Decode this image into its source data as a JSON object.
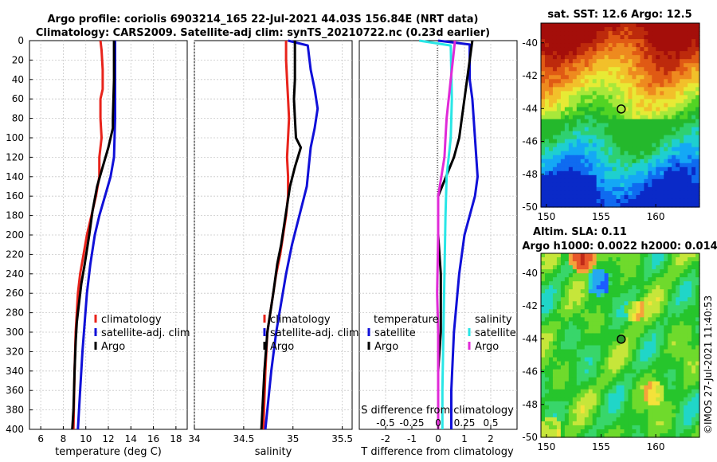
{
  "header": {
    "line1": "Argo profile: coriolis 6903214_165 22-Jul-2021 44.03S 156.84E (NRT data)",
    "line2": "Climatology: CARS2009. Satellite-adj clim: synTS_20210722.nc (0.23d earlier)"
  },
  "colors": {
    "red": "#e8231b",
    "blue": "#1010d8",
    "black": "#000000",
    "cyan": "#29e6e6",
    "magenta": "#e02ad8"
  },
  "chart_data": [
    {
      "type": "line",
      "name": "temperature",
      "xlabel": "temperature (deg C)",
      "ylabel": "",
      "xlim": [
        5,
        19
      ],
      "ylim": [
        400,
        0
      ],
      "xticks": [
        "6",
        "8",
        "10",
        "12",
        "14",
        "16",
        "18"
      ],
      "yticks": [
        "0",
        "20",
        "40",
        "60",
        "80",
        "100",
        "120",
        "140",
        "160",
        "180",
        "200",
        "220",
        "240",
        "260",
        "280",
        "300",
        "320",
        "340",
        "360",
        "380",
        "400"
      ],
      "legend": [
        "climatology",
        "satellite-adj. clim",
        "Argo"
      ],
      "series": [
        {
          "name": "climatology",
          "color": "red",
          "points": [
            [
              11.3,
              0
            ],
            [
              11.4,
              10
            ],
            [
              11.5,
              30
            ],
            [
              11.5,
              50
            ],
            [
              11.3,
              60
            ],
            [
              11.3,
              80
            ],
            [
              11.4,
              100
            ],
            [
              11.2,
              120
            ],
            [
              11.2,
              140
            ],
            [
              10.9,
              160
            ],
            [
              10.5,
              180
            ],
            [
              10.1,
              200
            ],
            [
              9.8,
              220
            ],
            [
              9.5,
              240
            ],
            [
              9.3,
              260
            ],
            [
              9.2,
              280
            ],
            [
              9.1,
              300
            ],
            [
              9.0,
              340
            ],
            [
              8.9,
              400
            ]
          ]
        },
        {
          "name": "satellite-adj. clim",
          "color": "blue",
          "points": [
            [
              12.6,
              0
            ],
            [
              12.6,
              20
            ],
            [
              12.6,
              80
            ],
            [
              12.5,
              120
            ],
            [
              12.2,
              140
            ],
            [
              11.7,
              160
            ],
            [
              11.2,
              180
            ],
            [
              10.8,
              200
            ],
            [
              10.4,
              230
            ],
            [
              10.1,
              260
            ],
            [
              9.9,
              290
            ],
            [
              9.7,
              320
            ],
            [
              9.5,
              360
            ],
            [
              9.3,
              400
            ]
          ]
        },
        {
          "name": "Argo",
          "color": "black",
          "points": [
            [
              12.5,
              0
            ],
            [
              12.5,
              20
            ],
            [
              12.5,
              40
            ],
            [
              12.4,
              80
            ],
            [
              12.4,
              90
            ],
            [
              12.0,
              110
            ],
            [
              11.5,
              130
            ],
            [
              11.0,
              150
            ],
            [
              10.6,
              175
            ],
            [
              10.3,
              200
            ],
            [
              9.9,
              230
            ],
            [
              9.6,
              250
            ],
            [
              9.4,
              270
            ],
            [
              9.2,
              290
            ],
            [
              9.1,
              310
            ],
            [
              9.0,
              340
            ],
            [
              8.9,
              380
            ],
            [
              8.8,
              400
            ]
          ]
        }
      ]
    },
    {
      "type": "line",
      "name": "salinity",
      "xlabel": "salinity",
      "xlim": [
        34.0,
        35.6
      ],
      "ylim": [
        400,
        0
      ],
      "xticks": [
        "34",
        "34.5",
        "35",
        "35.5"
      ],
      "legend": [
        "climatology",
        "satellite-adj. clim",
        "Argo"
      ],
      "series": [
        {
          "name": "climatology",
          "color": "red",
          "points": [
            [
              34.93,
              0
            ],
            [
              34.93,
              20
            ],
            [
              34.94,
              40
            ],
            [
              34.95,
              60
            ],
            [
              34.96,
              80
            ],
            [
              34.95,
              100
            ],
            [
              34.94,
              120
            ],
            [
              34.95,
              140
            ],
            [
              34.95,
              160
            ],
            [
              34.93,
              180
            ],
            [
              34.9,
              200
            ],
            [
              34.87,
              220
            ],
            [
              34.83,
              240
            ],
            [
              34.8,
              260
            ],
            [
              34.77,
              280
            ],
            [
              34.74,
              300
            ],
            [
              34.72,
              340
            ],
            [
              34.7,
              400
            ]
          ]
        },
        {
          "name": "satellite-adj. clim",
          "color": "blue",
          "points": [
            [
              34.95,
              0
            ],
            [
              35.15,
              5
            ],
            [
              35.18,
              30
            ],
            [
              35.22,
              50
            ],
            [
              35.25,
              70
            ],
            [
              35.22,
              90
            ],
            [
              35.18,
              110
            ],
            [
              35.16,
              130
            ],
            [
              35.14,
              150
            ],
            [
              35.09,
              170
            ],
            [
              35.04,
              190
            ],
            [
              34.99,
              210
            ],
            [
              34.93,
              240
            ],
            [
              34.88,
              270
            ],
            [
              34.83,
              300
            ],
            [
              34.78,
              340
            ],
            [
              34.72,
              400
            ]
          ]
        },
        {
          "name": "Argo",
          "color": "black",
          "points": [
            [
              35.02,
              0
            ],
            [
              35.02,
              20
            ],
            [
              35.02,
              40
            ],
            [
              35.01,
              60
            ],
            [
              35.02,
              80
            ],
            [
              35.03,
              100
            ],
            [
              35.08,
              110
            ],
            [
              35.05,
              120
            ],
            [
              35.02,
              130
            ],
            [
              34.97,
              150
            ],
            [
              34.94,
              170
            ],
            [
              34.91,
              190
            ],
            [
              34.88,
              210
            ],
            [
              34.84,
              230
            ],
            [
              34.8,
              260
            ],
            [
              34.77,
              280
            ],
            [
              34.74,
              300
            ],
            [
              34.71,
              340
            ],
            [
              34.68,
              400
            ]
          ]
        }
      ]
    },
    {
      "type": "line",
      "name": "difference",
      "xlabel": "T difference from climatology",
      "x2label": "S difference from climatology",
      "xlim": [
        -3,
        3
      ],
      "ylim": [
        400,
        0
      ],
      "xticks": [
        "-2",
        "-1",
        "0",
        "1",
        "2"
      ],
      "x2ticks": [
        "-0.5",
        "-0.25",
        "0",
        "0.25",
        "0.5"
      ],
      "legend_left_title": "temperature",
      "legend_right_title": "salinity",
      "legend_left": [
        "satellite",
        "Argo"
      ],
      "legend_right": [
        "satellite",
        "Argo"
      ],
      "series": [
        {
          "name": "T satellite",
          "color": "blue",
          "points": [
            [
              0.0,
              0
            ],
            [
              1.2,
              4
            ],
            [
              1.2,
              40
            ],
            [
              1.3,
              60
            ],
            [
              1.4,
              100
            ],
            [
              1.5,
              140
            ],
            [
              1.4,
              160
            ],
            [
              1.2,
              180
            ],
            [
              1.0,
              200
            ],
            [
              0.8,
              240
            ],
            [
              0.6,
              300
            ],
            [
              0.5,
              360
            ],
            [
              0.5,
              400
            ]
          ]
        },
        {
          "name": "T Argo",
          "color": "black",
          "points": [
            [
              1.3,
              0
            ],
            [
              1.2,
              20
            ],
            [
              1.1,
              40
            ],
            [
              1.0,
              60
            ],
            [
              0.9,
              80
            ],
            [
              0.8,
              100
            ],
            [
              0.6,
              120
            ],
            [
              0.3,
              140
            ],
            [
              0.0,
              160
            ],
            [
              0.0,
              200
            ],
            [
              0.1,
              240
            ],
            [
              0.1,
              300
            ],
            [
              0.0,
              340
            ],
            [
              0.0,
              400
            ]
          ]
        },
        {
          "name": "S satellite",
          "color": "cyan",
          "points": [
            [
              -0.18,
              0
            ],
            [
              0.12,
              5
            ],
            [
              0.13,
              60
            ],
            [
              0.12,
              100
            ],
            [
              0.1,
              120
            ],
            [
              0.08,
              140
            ],
            [
              0.07,
              180
            ],
            [
              0.06,
              240
            ],
            [
              0.05,
              300
            ],
            [
              0.04,
              360
            ],
            [
              0.04,
              400
            ]
          ]
        },
        {
          "name": "S Argo",
          "color": "magenta",
          "points": [
            [
              0.16,
              0
            ],
            [
              0.14,
              20
            ],
            [
              0.12,
              40
            ],
            [
              0.1,
              60
            ],
            [
              0.08,
              80
            ],
            [
              0.07,
              100
            ],
            [
              0.06,
              120
            ],
            [
              0.03,
              140
            ],
            [
              0.0,
              160
            ],
            [
              0.0,
              200
            ],
            [
              -0.01,
              260
            ],
            [
              0.0,
              300
            ],
            [
              0.0,
              400
            ]
          ]
        }
      ]
    },
    {
      "type": "heatmap",
      "name": "sst-map",
      "title": "sat. SST: 12.6 Argo: 12.5",
      "xticks": [
        "150",
        "155",
        "160"
      ],
      "yticks": [
        "-40",
        "-42",
        "-44",
        "-46",
        "-48",
        "-50"
      ],
      "xlim": [
        149.5,
        164.0
      ],
      "ylim": [
        -50,
        -38.8
      ],
      "marker": {
        "lon": 156.84,
        "lat": -44.03
      }
    },
    {
      "type": "heatmap",
      "name": "sla-map",
      "title1": "Altim. SLA: 0.11",
      "title2": "Argo h1000: 0.0022 h2000: 0.014",
      "xticks": [
        "150",
        "155",
        "160"
      ],
      "yticks": [
        "-40",
        "-42",
        "-44",
        "-46",
        "-48",
        "-50"
      ],
      "xlim": [
        149.5,
        164.0
      ],
      "ylim": [
        -50,
        -38.8
      ],
      "marker": {
        "lon": 156.84,
        "lat": -44.03
      }
    }
  ],
  "credit": "©IMOS 27-Jul-2021 11:40:53"
}
